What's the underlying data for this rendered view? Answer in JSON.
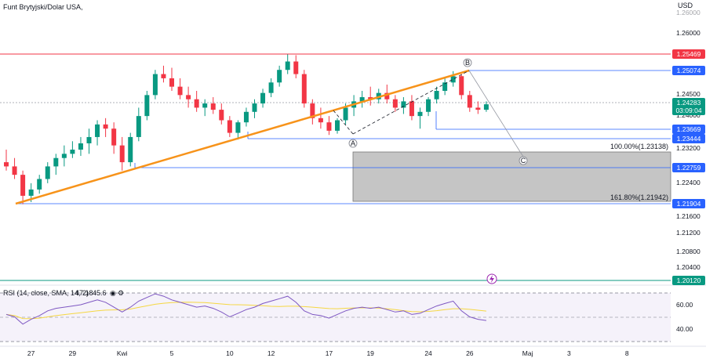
{
  "symbol_title": "Funt Brytyjski/Dolar USA,",
  "currency": "USD",
  "price_axis_ticks": [
    "1.26000",
    "1.24500",
    "1.24000",
    "1.23200",
    "1.22400",
    "1.21600",
    "1.21200",
    "1.20800",
    "1.20400"
  ],
  "price_tags": [
    {
      "label": "1.25469",
      "price": 1.25469,
      "color": "#f23645"
    },
    {
      "label": "1.25074",
      "price": 1.25074,
      "color": "#2962ff"
    },
    {
      "label": "1.23669",
      "price": 1.23669,
      "color": "#2962ff"
    },
    {
      "label": "1.23444",
      "price": 1.23444,
      "color": "#2962ff"
    },
    {
      "label": "1.22759",
      "price": 1.22759,
      "color": "#2962ff"
    },
    {
      "label": "1.21904",
      "price": 1.21904,
      "color": "#2962ff"
    },
    {
      "label": "1.20120",
      "price": 1.2012,
      "color": "#089981"
    }
  ],
  "current_price": {
    "label": "1.24283",
    "countdown": "03:09:04",
    "price": 1.24283,
    "color": "#089981"
  },
  "fib_labels": [
    "100.00%(1.23138)",
    "161.80%(1.21942)"
  ],
  "wave_labels": [
    "A",
    "B",
    "C"
  ],
  "rsi": {
    "title": "RSI (14, close, SMA, 14, 2)",
    "value": "47.18",
    "value2": "45.6",
    "ticks": [
      "60.00",
      "40.00"
    ]
  },
  "time_axis": [
    {
      "label": "27",
      "idx": 3
    },
    {
      "label": "29",
      "idx": 8
    },
    {
      "label": "Kwi",
      "idx": 14
    },
    {
      "label": "5",
      "idx": 20
    },
    {
      "label": "10",
      "idx": 27
    },
    {
      "label": "12",
      "idx": 32
    },
    {
      "label": "17",
      "idx": 39
    },
    {
      "label": "19",
      "idx": 44
    },
    {
      "label": "24",
      "idx": 51
    },
    {
      "label": "26",
      "idx": 56
    },
    {
      "label": "Maj",
      "idx": 63
    },
    {
      "label": "3",
      "idx": 68
    },
    {
      "label": "8",
      "idx": 75
    }
  ],
  "chart_data": {
    "type": "candlestick",
    "candles": [
      {
        "o": 1.229,
        "h": 1.232,
        "l": 1.227,
        "c": 1.228
      },
      {
        "o": 1.228,
        "h": 1.23,
        "l": 1.225,
        "c": 1.226
      },
      {
        "o": 1.226,
        "h": 1.227,
        "l": 1.219,
        "c": 1.221
      },
      {
        "o": 1.221,
        "h": 1.224,
        "l": 1.2195,
        "c": 1.2225
      },
      {
        "o": 1.2225,
        "h": 1.226,
        "l": 1.2215,
        "c": 1.225
      },
      {
        "o": 1.225,
        "h": 1.229,
        "l": 1.224,
        "c": 1.228
      },
      {
        "o": 1.228,
        "h": 1.231,
        "l": 1.226,
        "c": 1.23
      },
      {
        "o": 1.23,
        "h": 1.233,
        "l": 1.228,
        "c": 1.231
      },
      {
        "o": 1.231,
        "h": 1.234,
        "l": 1.23,
        "c": 1.232
      },
      {
        "o": 1.232,
        "h": 1.235,
        "l": 1.2305,
        "c": 1.2335
      },
      {
        "o": 1.2335,
        "h": 1.237,
        "l": 1.231,
        "c": 1.235
      },
      {
        "o": 1.235,
        "h": 1.239,
        "l": 1.233,
        "c": 1.238
      },
      {
        "o": 1.238,
        "h": 1.2395,
        "l": 1.235,
        "c": 1.237
      },
      {
        "o": 1.237,
        "h": 1.2385,
        "l": 1.231,
        "c": 1.233
      },
      {
        "o": 1.233,
        "h": 1.235,
        "l": 1.227,
        "c": 1.229
      },
      {
        "o": 1.229,
        "h": 1.236,
        "l": 1.228,
        "c": 1.235
      },
      {
        "o": 1.235,
        "h": 1.242,
        "l": 1.234,
        "c": 1.24
      },
      {
        "o": 1.24,
        "h": 1.246,
        "l": 1.239,
        "c": 1.245
      },
      {
        "o": 1.245,
        "h": 1.251,
        "l": 1.244,
        "c": 1.25
      },
      {
        "o": 1.25,
        "h": 1.252,
        "l": 1.248,
        "c": 1.249
      },
      {
        "o": 1.249,
        "h": 1.2515,
        "l": 1.246,
        "c": 1.247
      },
      {
        "o": 1.247,
        "h": 1.249,
        "l": 1.244,
        "c": 1.245
      },
      {
        "o": 1.245,
        "h": 1.247,
        "l": 1.242,
        "c": 1.244
      },
      {
        "o": 1.244,
        "h": 1.246,
        "l": 1.241,
        "c": 1.242
      },
      {
        "o": 1.242,
        "h": 1.244,
        "l": 1.24,
        "c": 1.243
      },
      {
        "o": 1.243,
        "h": 1.2445,
        "l": 1.2405,
        "c": 1.2415
      },
      {
        "o": 1.2415,
        "h": 1.243,
        "l": 1.238,
        "c": 1.239
      },
      {
        "o": 1.239,
        "h": 1.24,
        "l": 1.235,
        "c": 1.236
      },
      {
        "o": 1.236,
        "h": 1.239,
        "l": 1.2344,
        "c": 1.2385
      },
      {
        "o": 1.2385,
        "h": 1.242,
        "l": 1.2375,
        "c": 1.241
      },
      {
        "o": 1.241,
        "h": 1.244,
        "l": 1.2395,
        "c": 1.243
      },
      {
        "o": 1.243,
        "h": 1.2465,
        "l": 1.242,
        "c": 1.2455
      },
      {
        "o": 1.2455,
        "h": 1.249,
        "l": 1.2445,
        "c": 1.248
      },
      {
        "o": 1.248,
        "h": 1.252,
        "l": 1.247,
        "c": 1.251
      },
      {
        "o": 1.251,
        "h": 1.2547,
        "l": 1.25,
        "c": 1.253
      },
      {
        "o": 1.253,
        "h": 1.2545,
        "l": 1.249,
        "c": 1.25
      },
      {
        "o": 1.25,
        "h": 1.251,
        "l": 1.242,
        "c": 1.243
      },
      {
        "o": 1.243,
        "h": 1.244,
        "l": 1.238,
        "c": 1.2395
      },
      {
        "o": 1.2395,
        "h": 1.242,
        "l": 1.237,
        "c": 1.2385
      },
      {
        "o": 1.2385,
        "h": 1.24,
        "l": 1.2355,
        "c": 1.2365
      },
      {
        "o": 1.2365,
        "h": 1.2395,
        "l": 1.2358,
        "c": 1.239
      },
      {
        "o": 1.239,
        "h": 1.243,
        "l": 1.238,
        "c": 1.242
      },
      {
        "o": 1.242,
        "h": 1.245,
        "l": 1.24,
        "c": 1.2435
      },
      {
        "o": 1.2435,
        "h": 1.246,
        "l": 1.242,
        "c": 1.2445
      },
      {
        "o": 1.2445,
        "h": 1.247,
        "l": 1.2425,
        "c": 1.244
      },
      {
        "o": 1.244,
        "h": 1.2465,
        "l": 1.243,
        "c": 1.2455
      },
      {
        "o": 1.2455,
        "h": 1.2475,
        "l": 1.243,
        "c": 1.244
      },
      {
        "o": 1.244,
        "h": 1.245,
        "l": 1.241,
        "c": 1.242
      },
      {
        "o": 1.242,
        "h": 1.2445,
        "l": 1.2405,
        "c": 1.2435
      },
      {
        "o": 1.2435,
        "h": 1.245,
        "l": 1.239,
        "c": 1.24
      },
      {
        "o": 1.24,
        "h": 1.242,
        "l": 1.237,
        "c": 1.241
      },
      {
        "o": 1.241,
        "h": 1.2445,
        "l": 1.24,
        "c": 1.244
      },
      {
        "o": 1.244,
        "h": 1.247,
        "l": 1.243,
        "c": 1.246
      },
      {
        "o": 1.246,
        "h": 1.249,
        "l": 1.245,
        "c": 1.248
      },
      {
        "o": 1.248,
        "h": 1.2507,
        "l": 1.247,
        "c": 1.2495
      },
      {
        "o": 1.2495,
        "h": 1.25,
        "l": 1.244,
        "c": 1.245
      },
      {
        "o": 1.245,
        "h": 1.246,
        "l": 1.241,
        "c": 1.242
      },
      {
        "o": 1.242,
        "h": 1.2435,
        "l": 1.2405,
        "c": 1.2415
      },
      {
        "o": 1.2415,
        "h": 1.2435,
        "l": 1.241,
        "c": 1.2428
      }
    ],
    "rsi_values": [
      52,
      50,
      44,
      48,
      51,
      55,
      57,
      58,
      59,
      60,
      62,
      64,
      62,
      58,
      54,
      58,
      63,
      66,
      69,
      67,
      64,
      62,
      60,
      58,
      59,
      57,
      54,
      50,
      53,
      56,
      58,
      61,
      63,
      65,
      67,
      62,
      55,
      52,
      51,
      49,
      52,
      55,
      57,
      58,
      57,
      58,
      56,
      54,
      55,
      52,
      53,
      56,
      59,
      61,
      63,
      55,
      50,
      48,
      47
    ]
  }
}
